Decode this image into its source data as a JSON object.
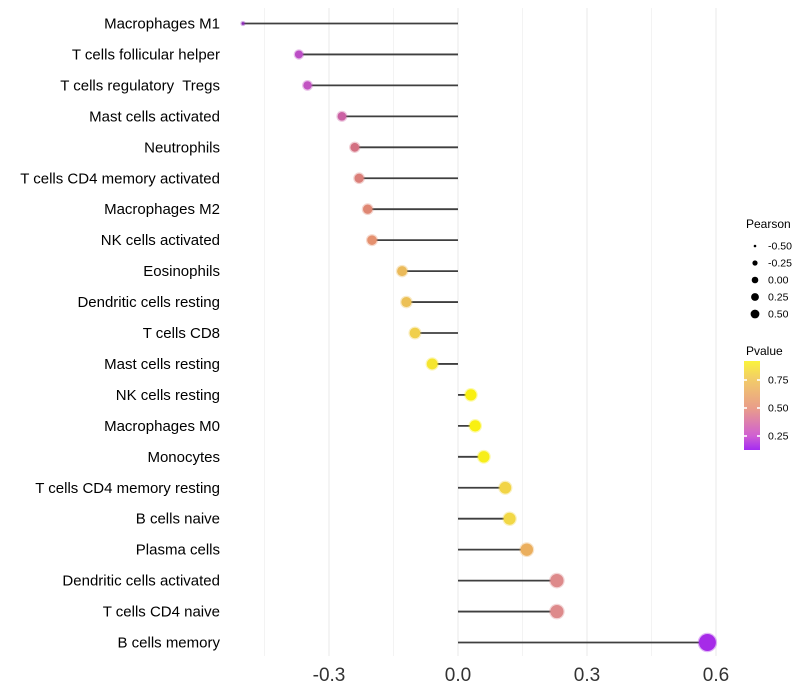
{
  "chart_data": {
    "type": "scatter",
    "variant": "horizontal-lollipop",
    "title": "",
    "xlabel": "",
    "ylabel": "",
    "xlim": [
      -0.535,
      0.655
    ],
    "x_ticks": [
      -0.3,
      0.0,
      0.3,
      0.6
    ],
    "x_tick_labels": [
      "-0.3",
      "0.0",
      "0.3",
      "0.6"
    ],
    "x_minor_ticks": [
      -0.45,
      -0.15,
      0.15,
      0.45
    ],
    "grid": "vertical-only",
    "baseline_value": 0.0,
    "points": [
      {
        "label": "Macrophages M1",
        "pearson": -0.5,
        "pvalue_est": 0.16,
        "color": "#8a28b5",
        "radius": 1.4
      },
      {
        "label": "T cells follicular helper",
        "pearson": -0.37,
        "pvalue_est": 0.3,
        "color": "#bc4ec6",
        "radius": 4.0
      },
      {
        "label": "T cells regulatory  Tregs",
        "pearson": -0.35,
        "pvalue_est": 0.32,
        "color": "#c254c2",
        "radius": 4.2
      },
      {
        "label": "Mast cells activated",
        "pearson": -0.27,
        "pvalue_est": 0.4,
        "color": "#cb61a4",
        "radius": 4.3
      },
      {
        "label": "Neutrophils",
        "pearson": -0.24,
        "pvalue_est": 0.46,
        "color": "#d37082",
        "radius": 4.4
      },
      {
        "label": "T cells CD4 memory activated",
        "pearson": -0.23,
        "pvalue_est": 0.5,
        "color": "#db7e79",
        "radius": 4.6
      },
      {
        "label": "Macrophages M2",
        "pearson": -0.21,
        "pvalue_est": 0.53,
        "color": "#df8773",
        "radius": 4.7
      },
      {
        "label": "NK cells activated",
        "pearson": -0.2,
        "pvalue_est": 0.56,
        "color": "#e5916f",
        "radius": 4.8
      },
      {
        "label": "Eosinophils",
        "pearson": -0.13,
        "pvalue_est": 0.66,
        "color": "#ebba5a",
        "radius": 5.0
      },
      {
        "label": "Dendritic cells resting",
        "pearson": -0.12,
        "pvalue_est": 0.67,
        "color": "#ecc055",
        "radius": 5.1
      },
      {
        "label": "T cells CD8",
        "pearson": -0.1,
        "pvalue_est": 0.71,
        "color": "#f0cf4b",
        "radius": 5.3
      },
      {
        "label": "Mast cells resting",
        "pearson": -0.06,
        "pvalue_est": 0.8,
        "color": "#f5e52f",
        "radius": 5.4
      },
      {
        "label": "NK cells resting",
        "pearson": 0.03,
        "pvalue_est": 0.88,
        "color": "#f9f011",
        "radius": 5.6
      },
      {
        "label": "Macrophages M0",
        "pearson": 0.04,
        "pvalue_est": 0.88,
        "color": "#f9f011",
        "radius": 5.6
      },
      {
        "label": "Monocytes",
        "pearson": 0.06,
        "pvalue_est": 0.86,
        "color": "#f7ee1b",
        "radius": 5.7
      },
      {
        "label": "T cells CD4 memory resting",
        "pearson": 0.11,
        "pvalue_est": 0.73,
        "color": "#f2d446",
        "radius": 5.9
      },
      {
        "label": "B cells naive",
        "pearson": 0.12,
        "pvalue_est": 0.73,
        "color": "#f2d846",
        "radius": 6.0
      },
      {
        "label": "Plasma cells",
        "pearson": 0.16,
        "pvalue_est": 0.63,
        "color": "#ebaf5e",
        "radius": 6.2
      },
      {
        "label": "Dendritic cells activated",
        "pearson": 0.23,
        "pvalue_est": 0.49,
        "color": "#de8a8b",
        "radius": 6.6
      },
      {
        "label": "T cells CD4 naive",
        "pearson": 0.23,
        "pvalue_est": 0.49,
        "color": "#de8a8b",
        "radius": 6.6
      },
      {
        "label": "B cells memory",
        "pearson": 0.58,
        "pvalue_est": 0.13,
        "color": "#a62be8",
        "radius": 8.5
      }
    ],
    "legend_size": {
      "title": "Pearson",
      "entries": [
        {
          "label": "-0.50",
          "radius": 1.3
        },
        {
          "label": "-0.25",
          "radius": 2.6
        },
        {
          "label": "0.00",
          "radius": 3.3
        },
        {
          "label": "0.25",
          "radius": 3.9
        },
        {
          "label": "0.50",
          "radius": 4.4
        }
      ],
      "dot_color": "#000000",
      "position": "right"
    },
    "legend_color": {
      "title": "Pvalue",
      "tick_labels": [
        "0.75",
        "0.50",
        "0.25"
      ],
      "gradient_stops": [
        {
          "offset": 0.0,
          "color": "#faf33c"
        },
        {
          "offset": 0.21,
          "color": "#f2cb69"
        },
        {
          "offset": 0.53,
          "color": "#e99d8a"
        },
        {
          "offset": 0.84,
          "color": "#d060d2"
        },
        {
          "offset": 1.0,
          "color": "#a42bf2"
        }
      ],
      "position": "right"
    },
    "style": {
      "stem_color": "#3f3f3f",
      "major_grid_color": "#e8e8e8",
      "minor_grid_color": "#f3f3f3",
      "axis_text_color": "#333333",
      "label_text_color": "#000000",
      "background": "#ffffff"
    }
  }
}
